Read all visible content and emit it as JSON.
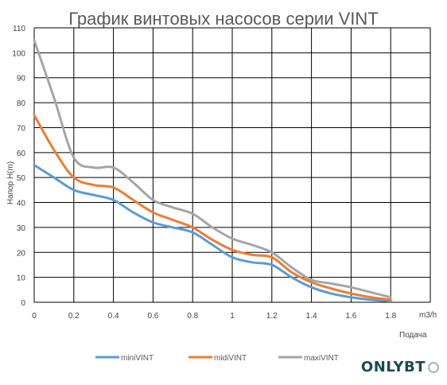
{
  "chart_data": {
    "type": "line",
    "title": "График винтовых насосов серии VINT",
    "ylabel": "Напор  H(m)",
    "xlabel": "Подача",
    "x_unit": "m3/h",
    "xlim": [
      0,
      1.8
    ],
    "ylim": [
      0,
      110
    ],
    "x_ticks": [
      0,
      0.2,
      0.4,
      0.6,
      0.8,
      1,
      1.2,
      1.4,
      1.6,
      1.8
    ],
    "y_ticks": [
      0,
      10,
      20,
      30,
      40,
      50,
      60,
      70,
      80,
      90,
      100,
      110
    ],
    "grid": true,
    "legend_position": "bottom",
    "series": [
      {
        "name": "miniVINT",
        "color": "#5B9BD5",
        "x": [
          0,
          0.1,
          0.2,
          0.3,
          0.4,
          0.5,
          0.6,
          0.7,
          0.8,
          0.9,
          1.0,
          1.1,
          1.2,
          1.3,
          1.4,
          1.5,
          1.6,
          1.7,
          1.8
        ],
        "y": [
          55,
          50,
          45,
          43,
          41,
          36,
          32,
          30,
          28,
          23,
          18,
          16,
          15,
          10,
          6,
          3.5,
          2,
          1,
          0.5
        ]
      },
      {
        "name": "midiVINT",
        "color": "#ED7D31",
        "x": [
          0,
          0.1,
          0.2,
          0.3,
          0.4,
          0.5,
          0.6,
          0.7,
          0.8,
          0.9,
          1.0,
          1.1,
          1.2,
          1.3,
          1.4,
          1.5,
          1.6,
          1.7,
          1.8
        ],
        "y": [
          75,
          61,
          50,
          47,
          46,
          41,
          36,
          33,
          30,
          25,
          21,
          19,
          18,
          12,
          8,
          5.5,
          3.5,
          2,
          1
        ]
      },
      {
        "name": "maxiVINT",
        "color": "#A5A5A5",
        "x": [
          0,
          0.1,
          0.2,
          0.3,
          0.4,
          0.5,
          0.6,
          0.7,
          0.8,
          0.9,
          1.0,
          1.1,
          1.2,
          1.3,
          1.4,
          1.5,
          1.6,
          1.7,
          1.8
        ],
        "y": [
          105,
          82,
          58,
          54,
          54,
          48,
          41,
          38,
          35.5,
          30,
          25.5,
          23,
          20,
          14,
          9,
          7.5,
          6,
          4,
          2
        ]
      }
    ]
  },
  "logo": {
    "text": "ONLYBT"
  }
}
